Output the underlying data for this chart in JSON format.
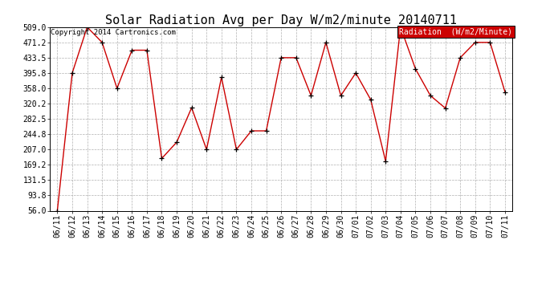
{
  "title": "Solar Radiation Avg per Day W/m2/minute 20140711",
  "copyright": "Copyright 2014 Cartronics.com",
  "legend_label": "Radiation  (W/m2/Minute)",
  "dates": [
    "06/11",
    "06/12",
    "06/13",
    "06/14",
    "06/15",
    "06/16",
    "06/17",
    "06/18",
    "06/19",
    "06/20",
    "06/21",
    "06/22",
    "06/23",
    "06/24",
    "06/25",
    "06/26",
    "06/27",
    "06/28",
    "06/29",
    "06/30",
    "07/01",
    "07/02",
    "07/03",
    "07/04",
    "07/05",
    "07/06",
    "07/07",
    "07/08",
    "07/09",
    "07/10",
    "07/11"
  ],
  "values": [
    56.0,
    395.8,
    509.0,
    471.2,
    358.0,
    452.0,
    452.0,
    185.0,
    225.0,
    310.0,
    207.0,
    385.0,
    207.0,
    253.0,
    253.0,
    433.5,
    433.5,
    340.0,
    471.2,
    340.0,
    395.8,
    330.0,
    178.0,
    509.0,
    406.0,
    340.0,
    309.0,
    433.5,
    471.2,
    471.2,
    349.0
  ],
  "ylim_min": 56.0,
  "ylim_max": 509.0,
  "yticks": [
    56.0,
    93.8,
    131.5,
    169.2,
    207.0,
    244.8,
    282.5,
    320.2,
    358.0,
    395.8,
    433.5,
    471.2,
    509.0
  ],
  "line_color": "#cc0000",
  "marker_color": "#000000",
  "bg_color": "#ffffff",
  "grid_color": "#b0b0b0",
  "legend_bg": "#cc0000",
  "legend_text_color": "#ffffff",
  "title_fontsize": 11,
  "copyright_fontsize": 6.5,
  "tick_fontsize": 7,
  "legend_fontsize": 7
}
